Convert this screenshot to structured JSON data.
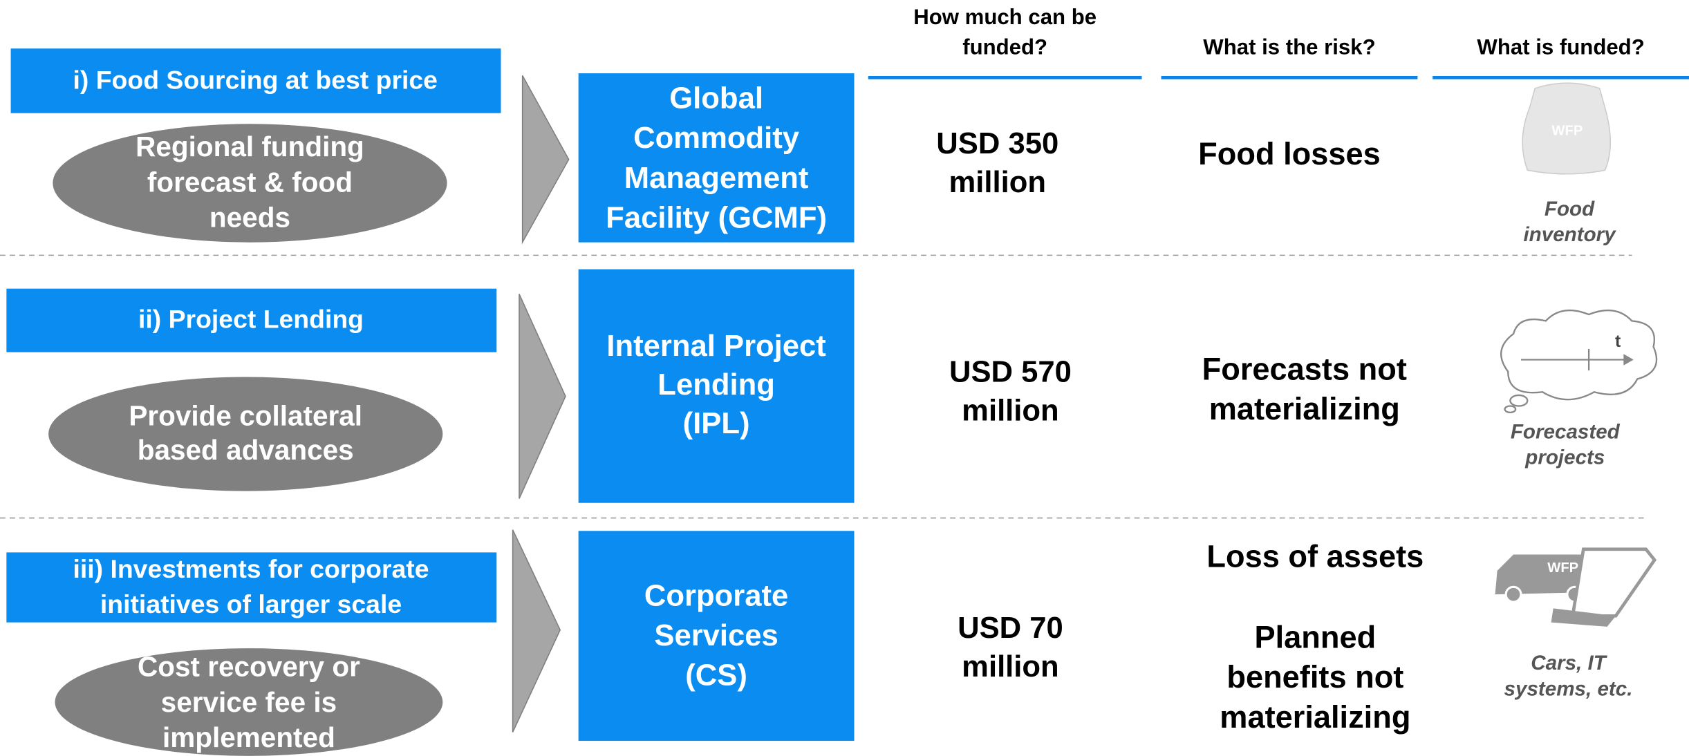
{
  "headers": [
    [
      "How much can be",
      "funded?"
    ],
    [
      "What is the risk?"
    ],
    [
      "What is funded?"
    ]
  ],
  "rows": [
    {
      "title": [
        "i) Food Sourcing at best price"
      ],
      "basis": [
        "Regional funding",
        "forecast & food",
        "needs"
      ],
      "facility": [
        "Global",
        "Commodity",
        "Management",
        "Facility (GCMF)"
      ],
      "amount": [
        "USD 350",
        "million"
      ],
      "risks": [
        [
          "Food losses"
        ]
      ],
      "funded": [
        "Food",
        "inventory"
      ],
      "icon_labels": [
        "WFP"
      ]
    },
    {
      "title": [
        "ii) Project Lending"
      ],
      "basis": [
        "Provide collateral",
        "based advances"
      ],
      "facility": [
        "Internal Project",
        "Lending",
        "(IPL)"
      ],
      "amount": [
        "USD 570",
        "million"
      ],
      "risks": [
        [
          "Forecasts not",
          "materializing"
        ]
      ],
      "funded": [
        "Forecasted",
        "projects"
      ],
      "icon_labels": [
        "t"
      ]
    },
    {
      "title": [
        "iii) Investments for corporate",
        "initiatives of larger scale"
      ],
      "basis": [
        "Cost recovery or",
        "service fee is",
        "implemented"
      ],
      "facility": [
        "Corporate",
        "Services",
        "(CS)"
      ],
      "amount": [
        "USD 70",
        "million"
      ],
      "risks": [
        [
          "Loss of assets"
        ],
        [
          "Planned",
          "benefits not",
          "materializing"
        ]
      ],
      "funded": [
        "Cars, IT",
        "systems, etc."
      ],
      "icon_labels": [
        "WFP"
      ]
    }
  ]
}
